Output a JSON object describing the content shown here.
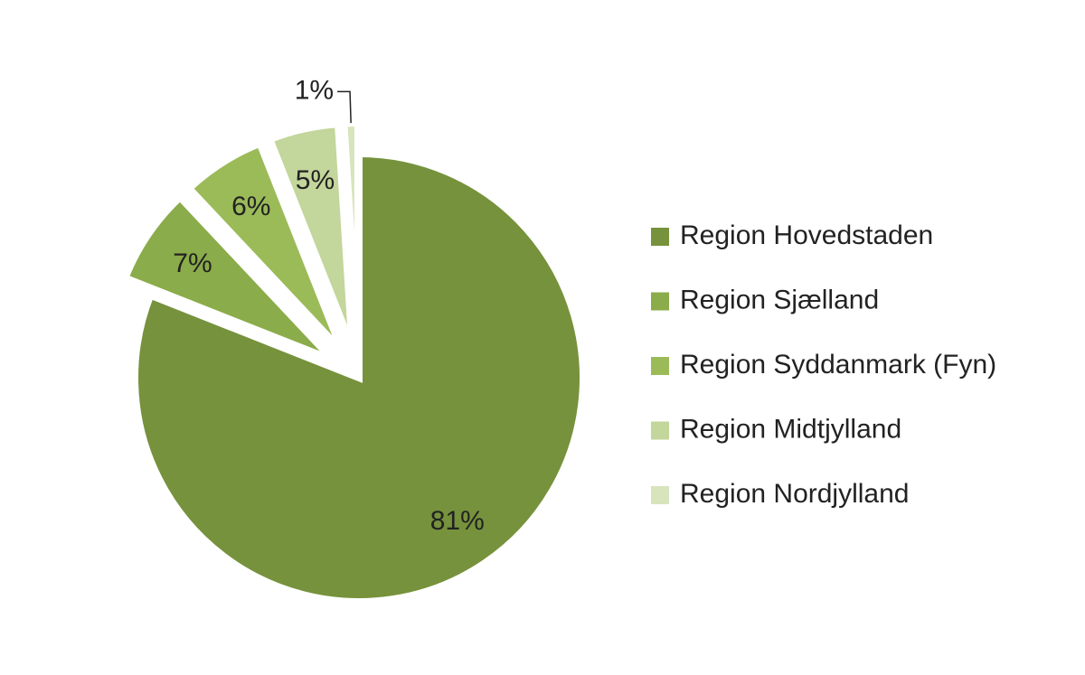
{
  "chart_data": {
    "type": "pie",
    "categories": [
      "Region Hovedstaden",
      "Region Sjælland",
      "Region Syddanmark (Fyn)",
      "Region Midtjylland",
      "Region Nordjylland"
    ],
    "values": [
      81,
      7,
      6,
      5,
      1
    ],
    "value_labels": [
      "81%",
      "7%",
      "6%",
      "5%",
      "1%"
    ],
    "colors": [
      "#76923c",
      "#8aac4a",
      "#9bbb59",
      "#c3d69b",
      "#d7e4bc"
    ],
    "exploded": [
      false,
      true,
      true,
      true,
      true
    ],
    "legend": "right"
  }
}
